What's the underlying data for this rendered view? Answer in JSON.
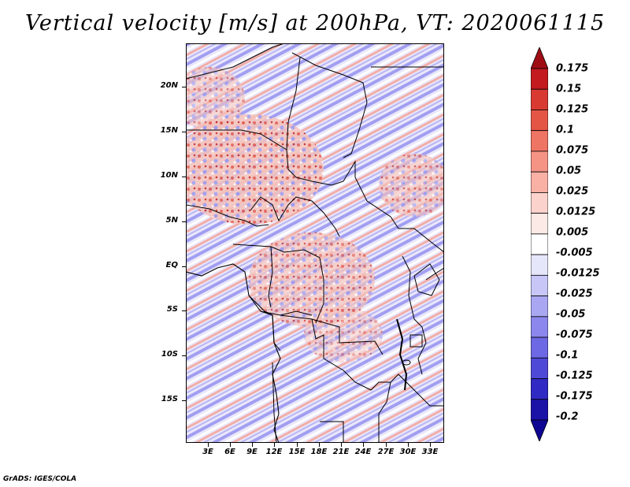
{
  "title": "Vertical velocity [m/s] at 200hPa, VT: 2020061115",
  "footer": "GrADS: IGES/COLA",
  "map": {
    "lat_labels": [
      "20N",
      "15N",
      "10N",
      "5N",
      "EQ",
      "5S",
      "10S",
      "15S"
    ],
    "lon_labels": [
      "3E",
      "6E",
      "9E",
      "12E",
      "15E",
      "18E",
      "21E",
      "24E",
      "27E",
      "30E",
      "33E"
    ]
  },
  "colorbar": {
    "labels": [
      "0.175",
      "0.15",
      "0.125",
      "0.1",
      "0.075",
      "0.05",
      "0.025",
      "0.0125",
      "0.005",
      "-0.005",
      "-0.0125",
      "-0.025",
      "-0.05",
      "-0.075",
      "-0.1",
      "-0.125",
      "-0.175",
      "-0.2"
    ],
    "colors": [
      "#9e0d14",
      "#c21a1e",
      "#d83a32",
      "#e45546",
      "#ee7464",
      "#f59484",
      "#f9b0a5",
      "#fcd3cc",
      "#fbeae6",
      "#ffffff",
      "#e6e6fb",
      "#c7c6f7",
      "#aaa7f2",
      "#8b87ec",
      "#6d68e3",
      "#4f49d7",
      "#3129c4",
      "#1b12a8",
      "#0e0592"
    ]
  }
}
